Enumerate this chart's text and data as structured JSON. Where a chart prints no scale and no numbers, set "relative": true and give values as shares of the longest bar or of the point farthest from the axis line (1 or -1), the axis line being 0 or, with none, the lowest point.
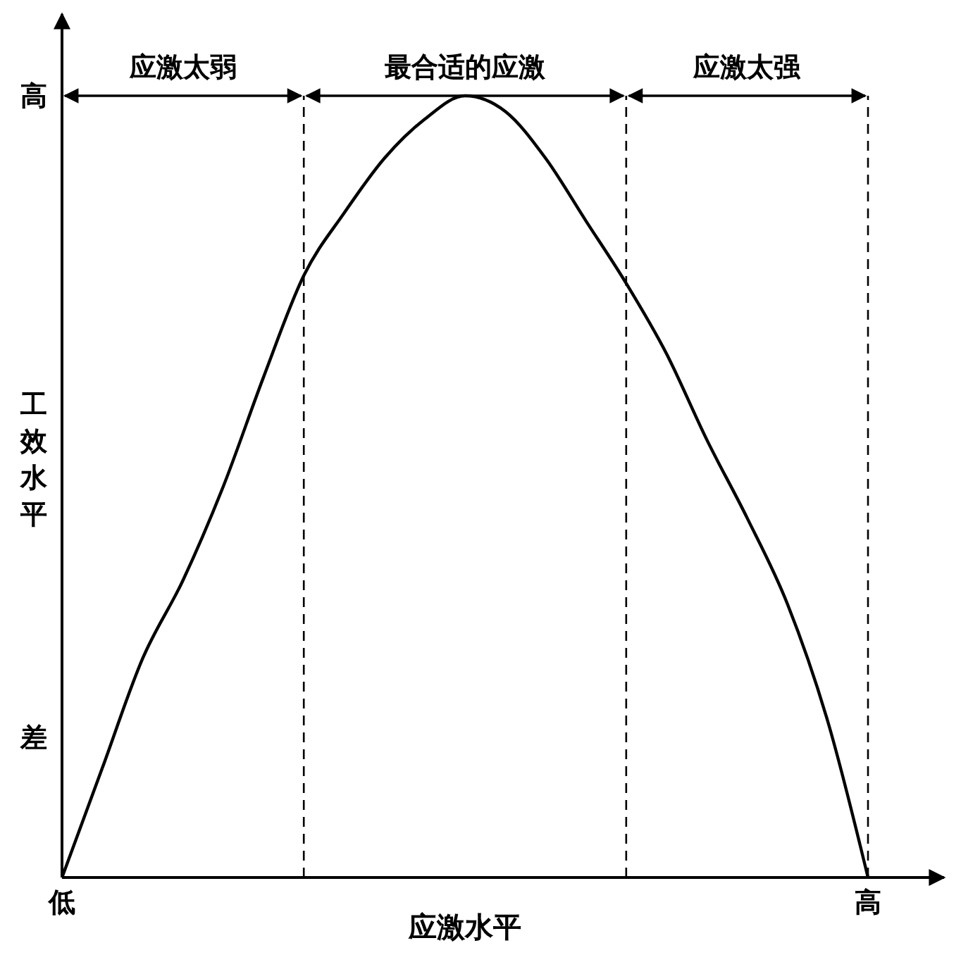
{
  "chart_data": {
    "type": "line",
    "xlabel": "应激水平",
    "ylabel": "工效水平",
    "relative": true,
    "categories": [
      "低",
      null,
      null,
      null,
      null,
      null,
      null,
      null,
      null,
      null,
      null,
      null,
      null,
      null,
      null,
      null,
      null,
      null,
      null,
      null,
      "高"
    ],
    "series": [
      {
        "color": "#000000",
        "values": [
          0,
          0.14,
          0.28,
          0.38,
          0.5,
          0.64,
          0.77,
          0.85,
          0.92,
          0.97,
          1,
          0.98,
          0.92,
          0.84,
          0.76,
          0.67,
          0.56,
          0.46,
          0.35,
          0.2,
          0
        ]
      }
    ],
    "annotations": [
      "应激太弱",
      "最合适的应激",
      "应激太强",
      "高",
      "差"
    ],
    "grid": true
  }
}
